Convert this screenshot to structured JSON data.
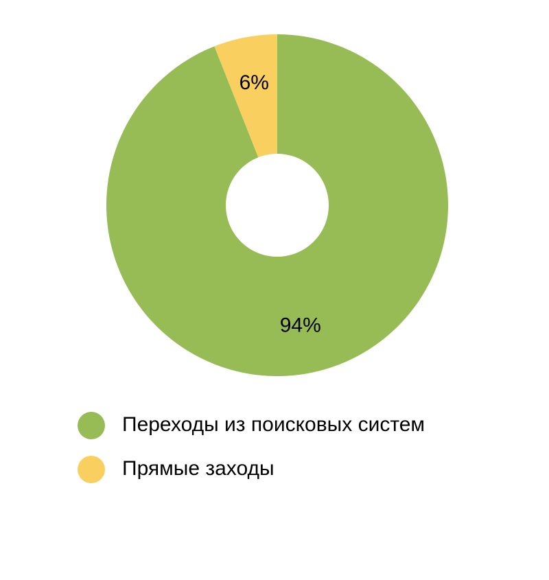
{
  "chart_data": {
    "type": "donut",
    "categories": [
      "Переходы из поисковых систем",
      "Прямые заходы"
    ],
    "values": [
      94,
      6
    ],
    "value_labels": [
      "94%",
      "6%"
    ],
    "colors": [
      "#97bb55",
      "#f9cf60"
    ]
  }
}
